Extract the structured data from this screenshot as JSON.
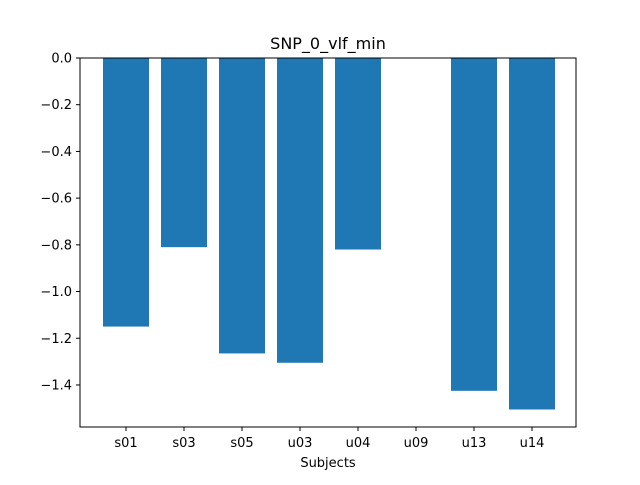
{
  "chart_data": {
    "type": "bar",
    "title": "SNP_0_vlf_min",
    "xlabel": "Subjects",
    "ylabel": "",
    "categories": [
      "s01",
      "s03",
      "s05",
      "u03",
      "u04",
      "u09",
      "u13",
      "u14"
    ],
    "values": [
      -1.15,
      -0.81,
      -1.265,
      -1.305,
      -0.82,
      0.0,
      -1.425,
      -1.505
    ],
    "ylim": [
      -1.58,
      0.0
    ],
    "yticks": [
      0.0,
      -0.2,
      -0.4,
      -0.6,
      -0.8,
      -1.0,
      -1.2,
      -1.4
    ],
    "ytick_labels": [
      "0.0",
      "−0.2",
      "−0.4",
      "−0.6",
      "−0.8",
      "−1.0",
      "−1.2",
      "−1.4"
    ],
    "bar_color": "#1f77b4",
    "grid": false,
    "legend": "none"
  }
}
